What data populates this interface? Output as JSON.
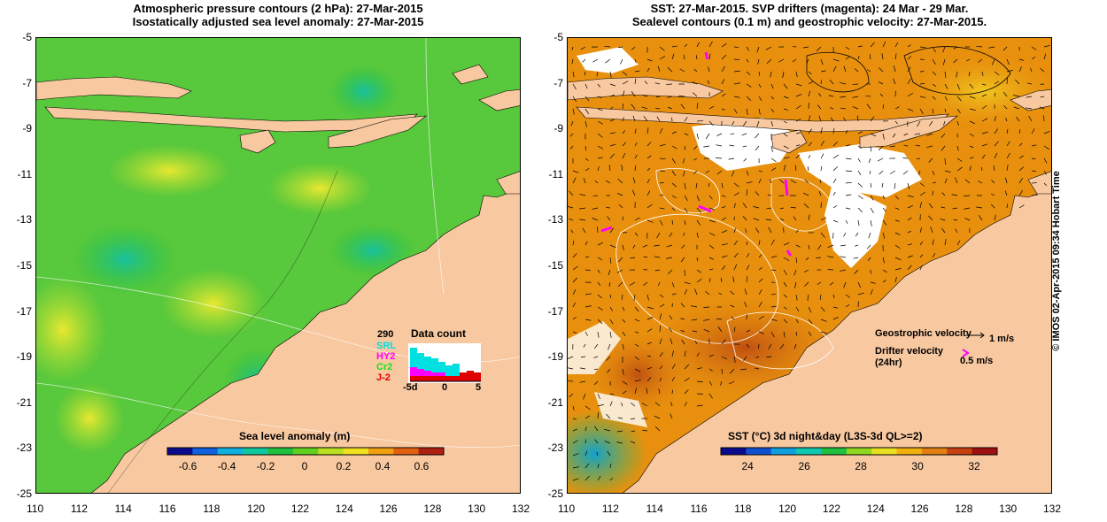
{
  "left": {
    "title_line1": "Atmospheric pressure contours (2 hPa): 27-Mar-2015",
    "title_line2": "Isostatically adjusted sea level anomaly: 27-Mar-2015",
    "colorbar": {
      "label": "Sea level anomaly (m)",
      "ticks": [
        "-0.6",
        "-0.4",
        "-0.2",
        "0",
        "0.2",
        "0.4",
        "0.6"
      ],
      "colors": [
        "#0a0a8c",
        "#1060e0",
        "#10b0e0",
        "#10c8a0",
        "#20c040",
        "#60d020",
        "#b8e020",
        "#f0e020",
        "#f0a010",
        "#e06010",
        "#b02010"
      ]
    },
    "data_count": {
      "title": "Data count",
      "max_label": "290",
      "satellites": [
        {
          "name": "SRL",
          "color": "#00e0e0"
        },
        {
          "name": "HY2",
          "color": "#ff00ff"
        },
        {
          "name": "Cr2",
          "color": "#20e020"
        },
        {
          "name": "J-2",
          "color": "#e00000"
        }
      ],
      "xticks": [
        "-5d",
        "0",
        "5"
      ]
    }
  },
  "right": {
    "title_line1": "SST: 27-Mar-2015. SVP drifters (magenta): 24 Mar - 29 Mar.",
    "title_line2": "Sealevel contours (0.1 m) and geostrophic velocity: 27-Mar-2015.",
    "legend": {
      "geostrophic": "Geostrophic velocity",
      "geo_scale": "1 m/s",
      "drifter_line1": "Drifter velocity",
      "drifter_line2": "(24hr)",
      "drifter_scale": "0.5 m/s"
    },
    "colorbar": {
      "label": "SST (°C) 3d night&day (L3S-3d QL>=2)",
      "ticks": [
        "24",
        "26",
        "28",
        "30",
        "32"
      ],
      "colors": [
        "#0a0a8c",
        "#1050d0",
        "#10a0e0",
        "#10c8b0",
        "#20c040",
        "#90d820",
        "#e8e020",
        "#f0b010",
        "#e08010",
        "#c84010",
        "#a01010"
      ]
    },
    "stamp": "© IMOS 02-Apr-2015 09:34 Hobart Time"
  },
  "axes": {
    "lon_ticks": [
      "110",
      "112",
      "114",
      "116",
      "118",
      "120",
      "122",
      "124",
      "126",
      "128",
      "130",
      "132"
    ],
    "lat_ticks": [
      "-5",
      "-7",
      "-9",
      "-11",
      "-13",
      "-15",
      "-17",
      "-19",
      "-21",
      "-23",
      "-25"
    ]
  }
}
